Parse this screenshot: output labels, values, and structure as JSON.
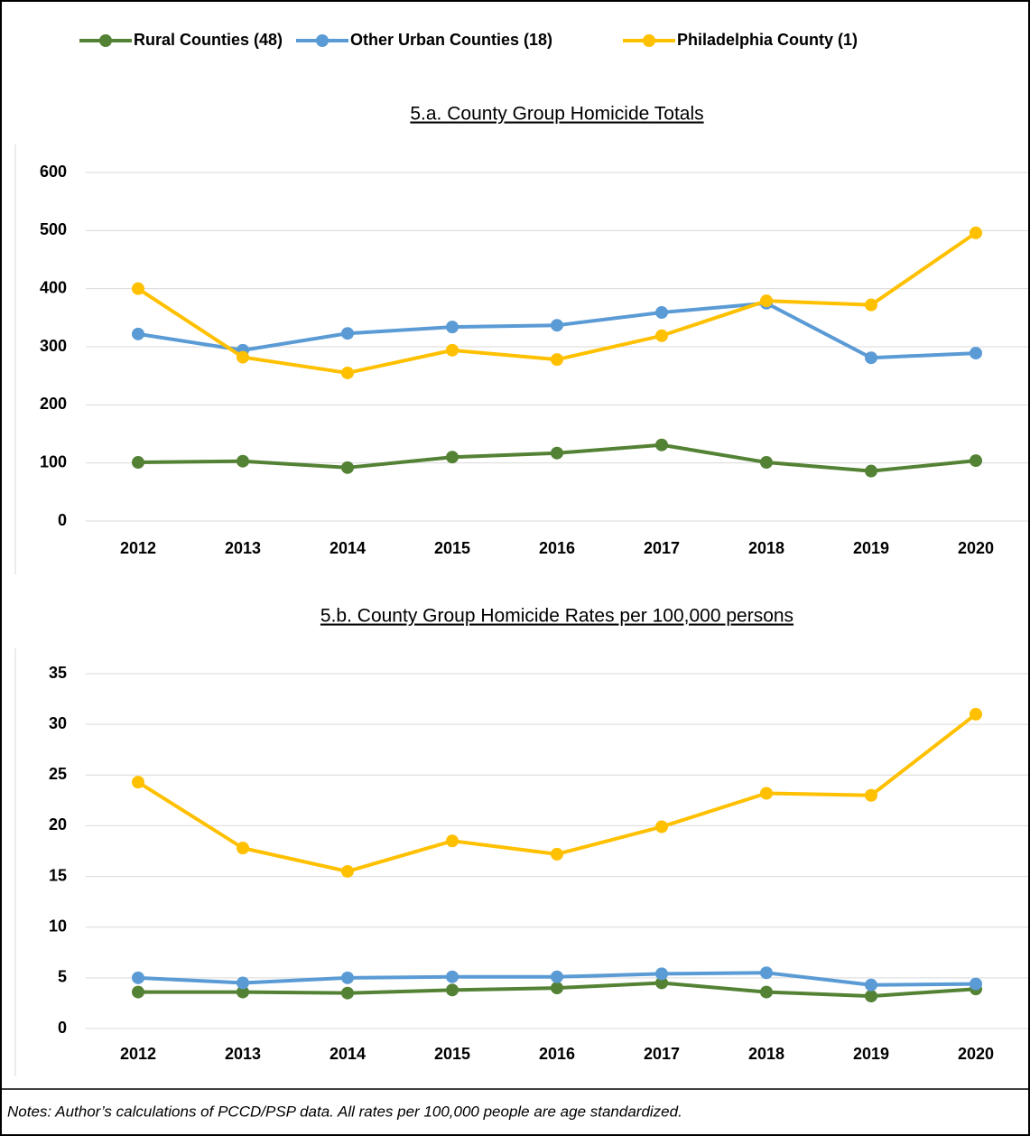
{
  "chart_data": [
    {
      "type": "line",
      "title": "5.a. County Group Homicide Totals",
      "categories": [
        "2012",
        "2013",
        "2014",
        "2015",
        "2016",
        "2017",
        "2018",
        "2019",
        "2020"
      ],
      "series": [
        {
          "name": "Rural Counties (48)",
          "color": "#548235",
          "values": [
            101,
            103,
            92,
            110,
            117,
            131,
            101,
            86,
            104
          ]
        },
        {
          "name": "Other Urban Counties (18)",
          "color": "#5b9bd5",
          "values": [
            322,
            294,
            323,
            334,
            337,
            359,
            375,
            281,
            289
          ]
        },
        {
          "name": "Philadelphia County (1)",
          "color": "#ffc000",
          "values": [
            400,
            282,
            255,
            294,
            278,
            319,
            379,
            372,
            496
          ]
        }
      ],
      "ylim": [
        0,
        600
      ],
      "yticks": [
        0,
        100,
        200,
        300,
        400,
        500,
        600
      ],
      "grid": true
    },
    {
      "type": "line",
      "title": "5.b. County Group Homicide Rates per 100,000 persons",
      "categories": [
        "2012",
        "2013",
        "2014",
        "2015",
        "2016",
        "2017",
        "2018",
        "2019",
        "2020"
      ],
      "series": [
        {
          "color": "#548235",
          "values": [
            3.6,
            3.6,
            3.5,
            3.8,
            4.0,
            4.5,
            3.6,
            3.2,
            3.9
          ]
        },
        {
          "color": "#5b9bd5",
          "values": [
            5.0,
            4.5,
            5.0,
            5.1,
            5.1,
            5.4,
            5.5,
            4.3,
            4.4
          ]
        },
        {
          "color": "#ffc000",
          "values": [
            24.3,
            17.8,
            15.5,
            18.5,
            17.2,
            19.9,
            23.2,
            23.0,
            31.0
          ]
        }
      ],
      "ylim": [
        0,
        35
      ],
      "yticks": [
        0,
        5,
        10,
        15,
        20,
        25,
        30,
        35
      ],
      "grid": true
    }
  ],
  "notes": "Notes: Author’s calculations of PCCD/PSP data. All rates per 100,000 people are age standardized."
}
